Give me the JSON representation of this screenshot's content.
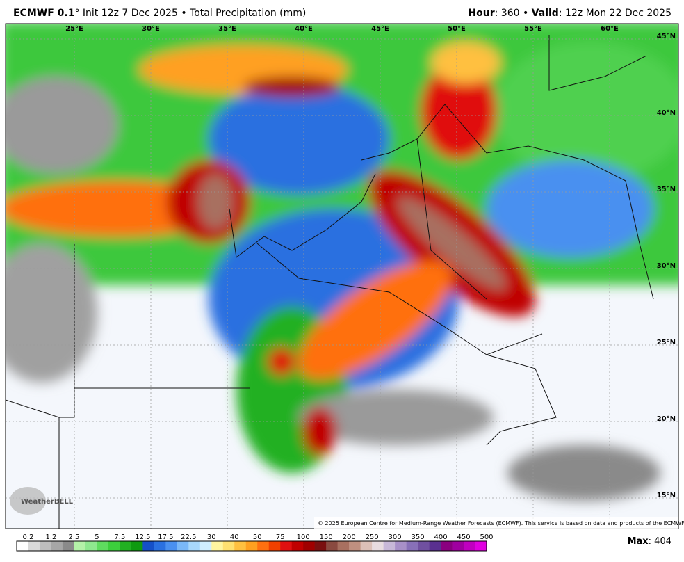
{
  "header": {
    "model": "ECMWF 0.1",
    "run": "° Init 12z 7 Dec 2025 • Total Precipitation (mm)",
    "hour_label": "Hour",
    "hour_value": ": 360 • ",
    "valid_label": "Valid",
    "valid_value": ": 12z Mon 22 Dec 2025"
  },
  "map": {
    "lon_labels": [
      "25°E",
      "30°E",
      "35°E",
      "40°E",
      "45°E",
      "50°E",
      "55°E",
      "60°E"
    ],
    "lat_labels": [
      "45°N",
      "40°N",
      "35°N",
      "30°N",
      "25°N",
      "20°N",
      "15°N"
    ],
    "copyright": "© 2025 European Centre for Medium-Range Weather Forecasts (ECMWF). This service is based on data and products of the ECMWF.",
    "logo": "WeatherBELL"
  },
  "colorbar": {
    "labels": [
      "0.2",
      "1.2",
      "2.5",
      "5",
      "7.5",
      "12.5",
      "17.5",
      "22.5",
      "30",
      "40",
      "50",
      "75",
      "100",
      "150",
      "200",
      "250",
      "300",
      "350",
      "400",
      "450",
      "500"
    ],
    "colors": [
      "#ffffff",
      "#d9d9d9",
      "#bdbdbd",
      "#a6a6a6",
      "#8a8a8a",
      "#b4f2a8",
      "#8fe88f",
      "#5fdc5f",
      "#3ccf3c",
      "#22b022",
      "#0f9a10",
      "#1550c8",
      "#2a70e0",
      "#4a90f0",
      "#7ab8f8",
      "#a8d8fc",
      "#d0eefe",
      "#fff5a0",
      "#ffe070",
      "#ffc040",
      "#ffa020",
      "#ff7010",
      "#f04000",
      "#e01010",
      "#c00000",
      "#a00000",
      "#7a1010",
      "#8a4a40",
      "#a87060",
      "#c09080",
      "#dcc0b8",
      "#e8dce0",
      "#c8b8d8",
      "#a890c8",
      "#8870b8",
      "#7050a0",
      "#5a3090",
      "#8a0080",
      "#a000a0",
      "#c000c0",
      "#e000e0"
    ]
  },
  "max": {
    "label": "Max",
    "value": ": 404"
  }
}
